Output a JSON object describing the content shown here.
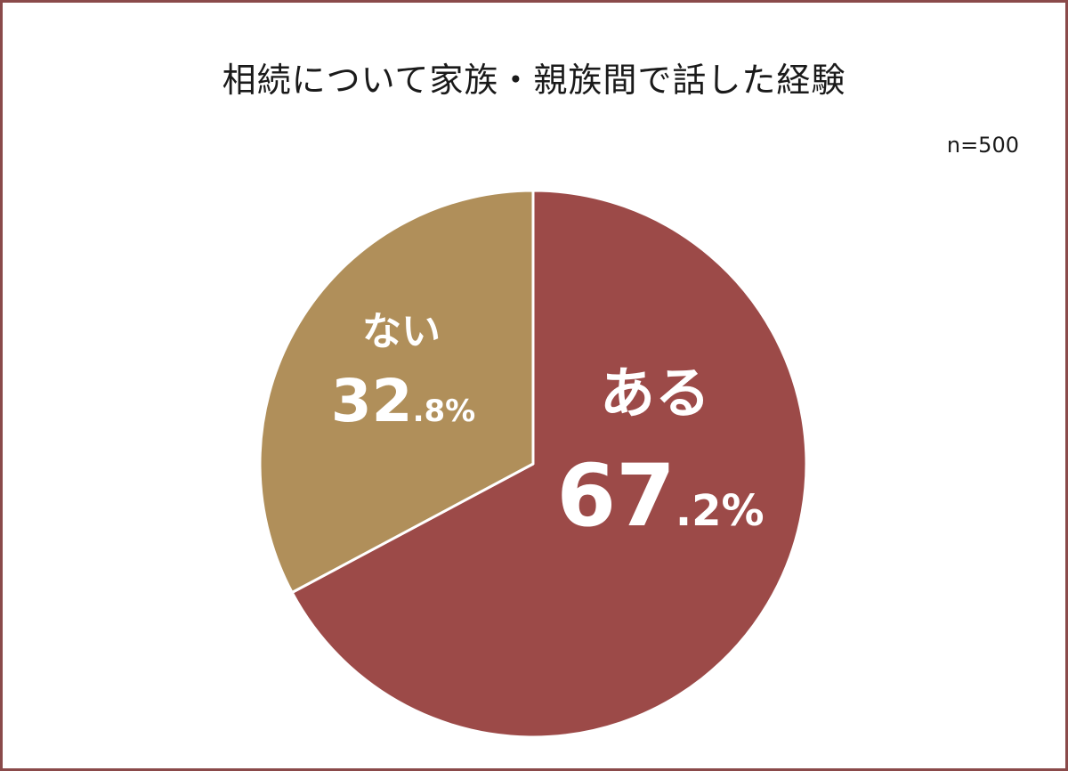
{
  "chart_data": {
    "type": "pie",
    "title": "相続について家族・親族間で話した経験",
    "sample_size": "n=500",
    "slices": [
      {
        "label": "ある",
        "value": 67.2,
        "int_part": "67",
        "dec_part": ".2%",
        "color": "#9c4a48"
      },
      {
        "label": "ない",
        "value": 32.8,
        "int_part": "32",
        "dec_part": ".8%",
        "color": "#b08f5a"
      }
    ],
    "start_angle_deg": 0,
    "direction": "clockwise",
    "legend": "none"
  }
}
